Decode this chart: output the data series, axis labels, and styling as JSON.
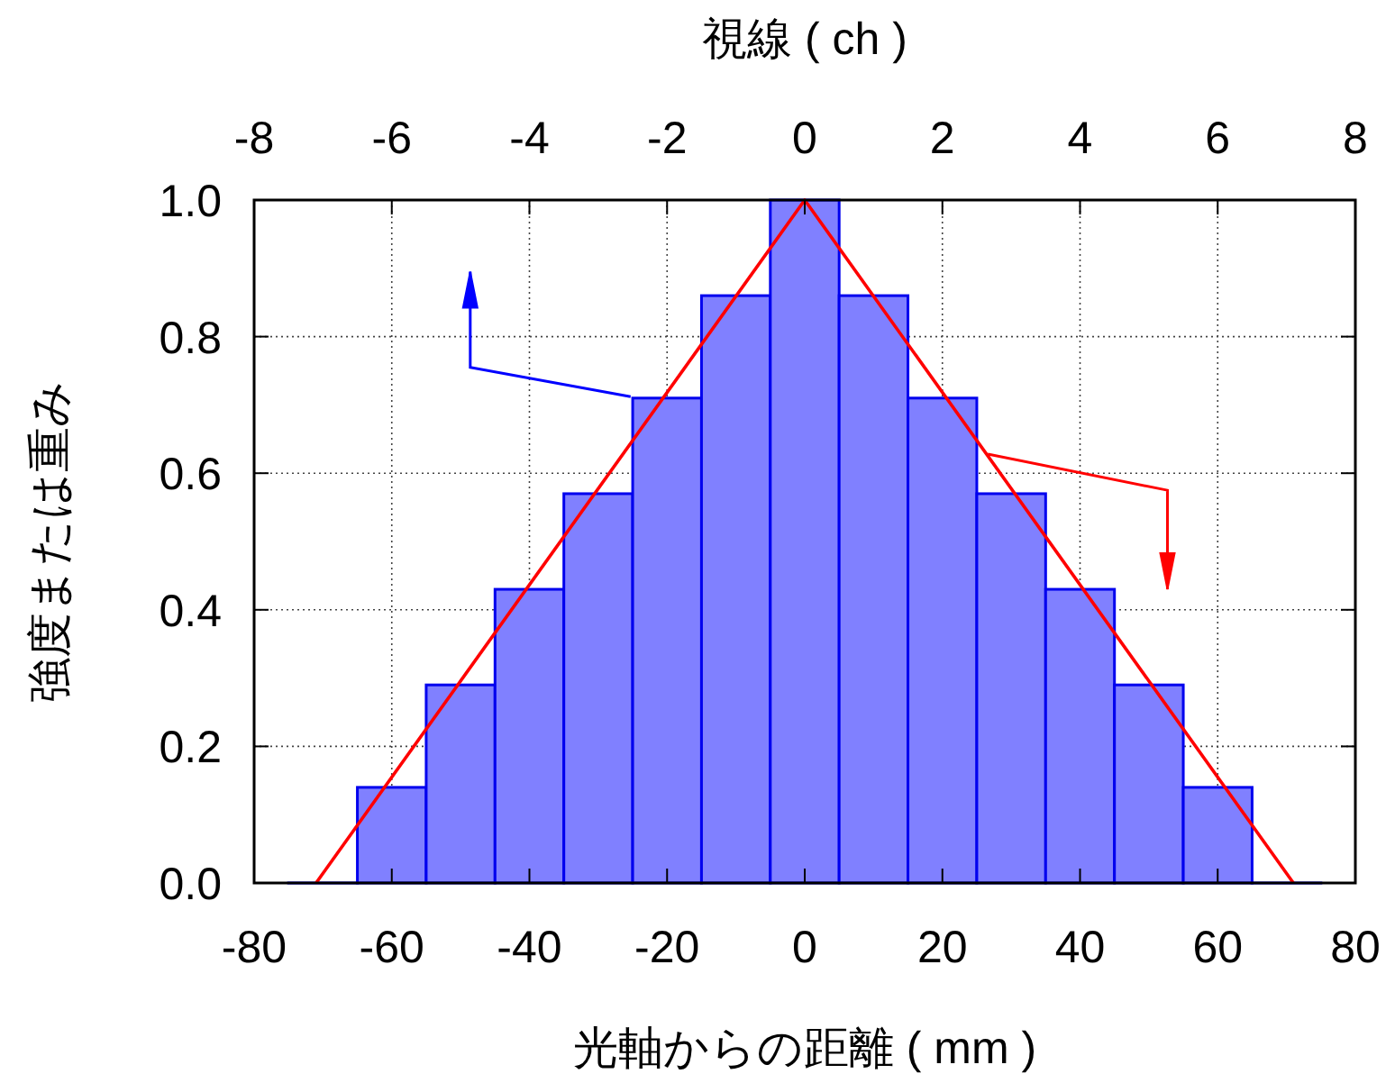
{
  "chart_data": {
    "type": "histogram",
    "xlabel": "光軸からの距離 ( mm )",
    "ylabel": "強度または重み",
    "x2label": "視線 ( ch )",
    "bins": [
      -75,
      -65,
      -55,
      -45,
      -35,
      -25,
      -15,
      -5,
      5,
      15,
      25,
      35,
      45,
      55,
      65,
      75
    ],
    "series": [
      {
        "color": "#8080ff",
        "values": [
          0,
          0.14,
          0.29,
          0.43,
          0.57,
          0.71,
          0.86,
          1.0,
          0.86,
          0.71,
          0.57,
          0.43,
          0.29,
          0.14,
          0
        ]
      },
      {
        "type": "line",
        "color": "#ff0000",
        "x": [
          -71,
          0,
          71
        ],
        "values": [
          0,
          1,
          0
        ]
      }
    ],
    "xlim": [
      -80,
      80
    ],
    "xticks": [
      -80,
      -60,
      -40,
      -20,
      0,
      20,
      40,
      60,
      80
    ],
    "x2lim": [
      -8,
      8
    ],
    "x2ticks": [
      -8,
      -6,
      -4,
      -2,
      0,
      2,
      4,
      6,
      8
    ],
    "ylim": [
      0,
      1
    ],
    "yticks": [
      {
        "value": 0,
        "label": "0.0"
      },
      {
        "value": 0.2,
        "label": "0.2"
      },
      {
        "value": 0.4,
        "label": "0.4"
      },
      {
        "value": 0.6,
        "label": "0.6"
      },
      {
        "value": 0.8,
        "label": "0.8"
      },
      {
        "value": 1,
        "label": "1.0"
      }
    ],
    "grid": true
  }
}
